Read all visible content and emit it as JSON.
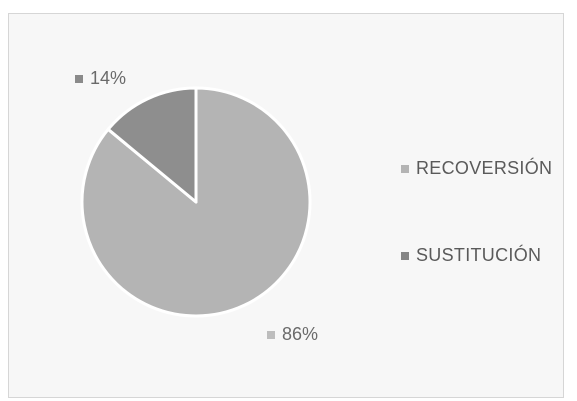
{
  "chart_data": {
    "type": "pie",
    "categories": [
      "RECOVERSIÓN",
      "SUSTITUCIÓN"
    ],
    "values": [
      86,
      14
    ],
    "data_labels": [
      "86%",
      "14%"
    ],
    "colors": [
      "#b4b4b4",
      "#8e8e8e"
    ],
    "legend_position": "right",
    "title": ""
  },
  "legend": {
    "items": [
      {
        "label": "RECOVERSIÓN",
        "color": "#b4b4b4"
      },
      {
        "label": "SUSTITUCIÓN",
        "color": "#858585"
      }
    ]
  },
  "labels": {
    "slice_0": "86%",
    "slice_1": "14%"
  }
}
